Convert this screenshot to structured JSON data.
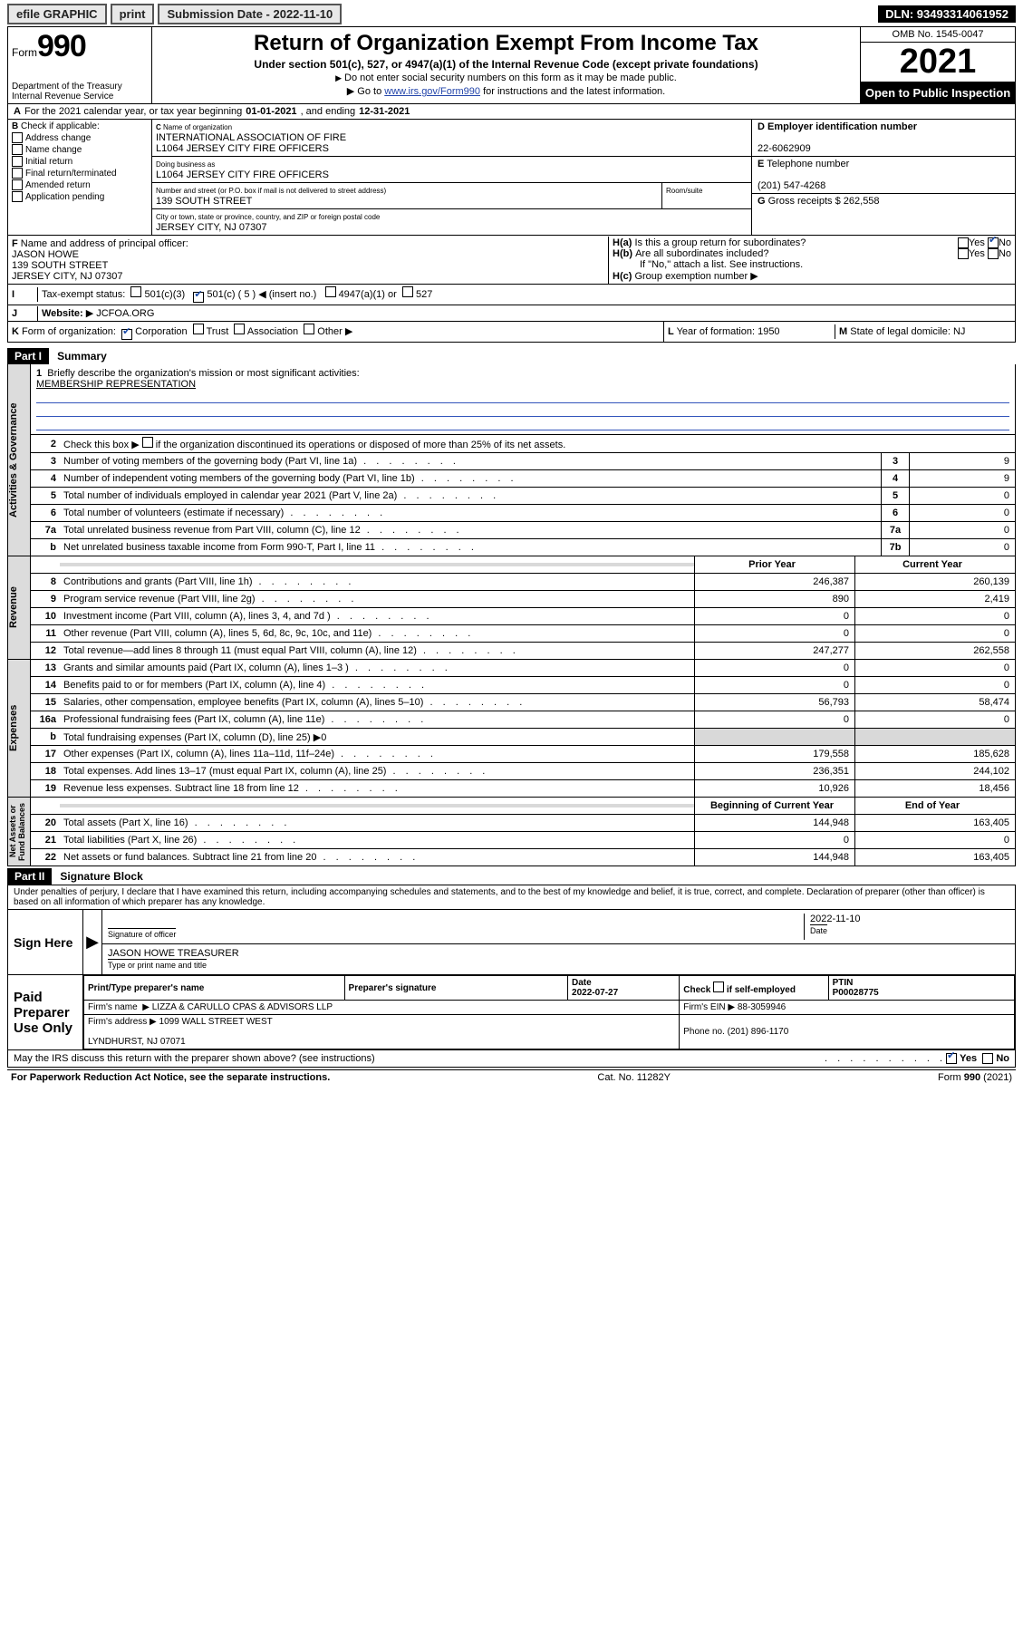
{
  "topbar": {
    "efile": "efile GRAPHIC",
    "print": "print",
    "subdate_label": "Submission Date - 2022-11-10",
    "dln": "DLN: 93493314061952"
  },
  "header": {
    "form_prefix": "Form",
    "form_num": "990",
    "dept": "Department of the Treasury",
    "irs": "Internal Revenue Service",
    "title": "Return of Organization Exempt From Income Tax",
    "sub": "Under section 501(c), 527, or 4947(a)(1) of the Internal Revenue Code (except private foundations)",
    "note1": "Do not enter social security numbers on this form as it may be made public.",
    "note2a": "Go to ",
    "note2_link": "www.irs.gov/Form990",
    "note2b": " for instructions and the latest information.",
    "omb": "OMB No. 1545-0047",
    "year": "2021",
    "open": "Open to Public Inspection"
  },
  "rowA": {
    "text_a": "For the 2021 calendar year, or tax year beginning ",
    "begin": "01-01-2021",
    "mid": " , and ending ",
    "end": "12-31-2021"
  },
  "B": {
    "title": "Check if applicable:",
    "addr": "Address change",
    "name": "Name change",
    "init": "Initial return",
    "final": "Final return/terminated",
    "amend": "Amended return",
    "app": "Application pending"
  },
  "C": {
    "name_lbl": "Name of organization",
    "name1": "INTERNATIONAL ASSOCIATION OF FIRE",
    "name2": "L1064 JERSEY CITY FIRE OFFICERS",
    "dba_lbl": "Doing business as",
    "dba": "L1064 JERSEY CITY FIRE OFFICERS",
    "street_lbl": "Number and street (or P.O. box if mail is not delivered to street address)",
    "room_lbl": "Room/suite",
    "street": "139 SOUTH STREET",
    "city_lbl": "City or town, state or province, country, and ZIP or foreign postal code",
    "city": "JERSEY CITY, NJ  07307"
  },
  "D": {
    "ein_lbl": "Employer identification number",
    "ein": "22-6062909",
    "tel_lbl": "Telephone number",
    "tel": "(201) 547-4268",
    "gross_lbl": "Gross receipts $",
    "gross": "262,558"
  },
  "F": {
    "lbl": "Name and address of principal officer:",
    "name": "JASON HOWE",
    "street": "139 SOUTH STREET",
    "city": "JERSEY CITY, NJ  07307"
  },
  "H": {
    "a": "Is this a group return for subordinates?",
    "b": "Are all subordinates included?",
    "b_note": "If \"No,\" attach a list. See instructions.",
    "c": "Group exemption number",
    "yes": "Yes",
    "no": "No"
  },
  "I": {
    "lbl": "Tax-exempt status:",
    "c3": "501(c)(3)",
    "c5a": "501(c) ( 5 )",
    "c5b": "(insert no.)",
    "a1": "4947(a)(1) or",
    "s527": "527"
  },
  "J": {
    "lbl": "Website:",
    "val": "JCFOA.ORG"
  },
  "K": {
    "lbl": "Form of organization:",
    "corp": "Corporation",
    "trust": "Trust",
    "assoc": "Association",
    "other": "Other"
  },
  "L": {
    "lbl": "Year of formation:",
    "val": "1950"
  },
  "M": {
    "lbl": "State of legal domicile:",
    "val": "NJ"
  },
  "partI": {
    "hdr": "Part I",
    "sub": "Summary",
    "l1": "Briefly describe the organization's mission or most significant activities:",
    "l1v": "MEMBERSHIP REPRESENTATION",
    "l2": "Check this box ▶        if the organization discontinued its operations or disposed of more than 25% of its net assets.",
    "rows_gov": [
      {
        "n": "3",
        "d": "Number of voting members of the governing body (Part VI, line 1a)",
        "b": "3",
        "v": "9"
      },
      {
        "n": "4",
        "d": "Number of independent voting members of the governing body (Part VI, line 1b)",
        "b": "4",
        "v": "9"
      },
      {
        "n": "5",
        "d": "Total number of individuals employed in calendar year 2021 (Part V, line 2a)",
        "b": "5",
        "v": "0"
      },
      {
        "n": "6",
        "d": "Total number of volunteers (estimate if necessary)",
        "b": "6",
        "v": "0"
      },
      {
        "n": "7a",
        "d": "Total unrelated business revenue from Part VIII, column (C), line 12",
        "b": "7a",
        "v": "0"
      },
      {
        "n": "b",
        "d": "Net unrelated business taxable income from Form 990-T, Part I, line 11",
        "b": "7b",
        "v": "0"
      }
    ],
    "col_prior": "Prior Year",
    "col_curr": "Current Year",
    "rows_rev": [
      {
        "n": "8",
        "d": "Contributions and grants (Part VIII, line 1h)",
        "p": "246,387",
        "c": "260,139"
      },
      {
        "n": "9",
        "d": "Program service revenue (Part VIII, line 2g)",
        "p": "890",
        "c": "2,419"
      },
      {
        "n": "10",
        "d": "Investment income (Part VIII, column (A), lines 3, 4, and 7d )",
        "p": "0",
        "c": "0"
      },
      {
        "n": "11",
        "d": "Other revenue (Part VIII, column (A), lines 5, 6d, 8c, 9c, 10c, and 11e)",
        "p": "0",
        "c": "0"
      },
      {
        "n": "12",
        "d": "Total revenue—add lines 8 through 11 (must equal Part VIII, column (A), line 12)",
        "p": "247,277",
        "c": "262,558"
      }
    ],
    "rows_exp": [
      {
        "n": "13",
        "d": "Grants and similar amounts paid (Part IX, column (A), lines 1–3 )",
        "p": "0",
        "c": "0"
      },
      {
        "n": "14",
        "d": "Benefits paid to or for members (Part IX, column (A), line 4)",
        "p": "0",
        "c": "0"
      },
      {
        "n": "15",
        "d": "Salaries, other compensation, employee benefits (Part IX, column (A), lines 5–10)",
        "p": "56,793",
        "c": "58,474"
      },
      {
        "n": "16a",
        "d": "Professional fundraising fees (Part IX, column (A), line 11e)",
        "p": "0",
        "c": "0"
      },
      {
        "n": "b",
        "d": "Total fundraising expenses (Part IX, column (D), line 25) ▶0",
        "p": "",
        "c": "",
        "shade": true
      },
      {
        "n": "17",
        "d": "Other expenses (Part IX, column (A), lines 11a–11d, 11f–24e)",
        "p": "179,558",
        "c": "185,628"
      },
      {
        "n": "18",
        "d": "Total expenses. Add lines 13–17 (must equal Part IX, column (A), line 25)",
        "p": "236,351",
        "c": "244,102"
      },
      {
        "n": "19",
        "d": "Revenue less expenses. Subtract line 18 from line 12",
        "p": "10,926",
        "c": "18,456"
      }
    ],
    "col_beg": "Beginning of Current Year",
    "col_end": "End of Year",
    "rows_net": [
      {
        "n": "20",
        "d": "Total assets (Part X, line 16)",
        "p": "144,948",
        "c": "163,405"
      },
      {
        "n": "21",
        "d": "Total liabilities (Part X, line 26)",
        "p": "0",
        "c": "0"
      },
      {
        "n": "22",
        "d": "Net assets or fund balances. Subtract line 21 from line 20",
        "p": "144,948",
        "c": "163,405"
      }
    ]
  },
  "partII": {
    "hdr": "Part II",
    "sub": "Signature Block",
    "decl": "Under penalties of perjury, I declare that I have examined this return, including accompanying schedules and statements, and to the best of my knowledge and belief, it is true, correct, and complete. Declaration of preparer (other than officer) is based on all information of which preparer has any knowledge."
  },
  "sign": {
    "here": "Sign Here",
    "sig_lbl": "Signature of officer",
    "date": "2022-11-10",
    "date_lbl": "Date",
    "name": "JASON HOWE  TREASURER",
    "name_lbl": "Type or print name and title"
  },
  "paid": {
    "lbl": "Paid Preparer Use Only",
    "col_name": "Print/Type preparer's name",
    "col_sig": "Preparer's signature",
    "col_date": "Date",
    "date": "2022-07-27",
    "self_lbl": "Check        if self-employed",
    "ptin_lbl": "PTIN",
    "ptin": "P00028775",
    "firm_name_lbl": "Firm's name",
    "firm_name": "LIZZA & CARULLO CPAS & ADVISORS LLP",
    "firm_ein_lbl": "Firm's EIN",
    "firm_ein": "88-3059946",
    "firm_addr_lbl": "Firm's address",
    "firm_addr1": "1099 WALL STREET WEST",
    "firm_addr2": "LYNDHURST, NJ  07071",
    "phone_lbl": "Phone no.",
    "phone": "(201) 896-1170"
  },
  "discuss": {
    "text": "May the IRS discuss this return with the preparer shown above? (see instructions)",
    "yes": "Yes",
    "no": "No"
  },
  "foot": {
    "left": "For Paperwork Reduction Act Notice, see the separate instructions.",
    "mid": "Cat. No. 11282Y",
    "right": "Form 990 (2021)"
  }
}
